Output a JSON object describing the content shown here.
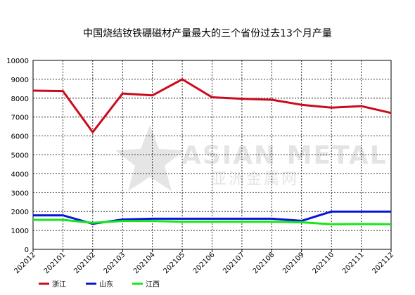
{
  "chart_data": {
    "type": "line",
    "title": "中国烧结钕铁硼磁材产量最大的三个省份过去13个月产量",
    "xlabel": "",
    "ylabel": "",
    "categories": [
      "202012",
      "202101",
      "202102",
      "202103",
      "202104",
      "202105",
      "202106",
      "202107",
      "202108",
      "202109",
      "202110",
      "202111",
      "202112"
    ],
    "ylim": [
      0,
      10000
    ],
    "yticks": [
      0,
      1000,
      2000,
      3000,
      4000,
      5000,
      6000,
      7000,
      8000,
      9000,
      10000
    ],
    "grid": true,
    "legend_position": "bottom-left",
    "series": [
      {
        "name": "浙江",
        "color": "#cc0a1e",
        "values": [
          8400,
          8380,
          6200,
          8250,
          8150,
          9000,
          8050,
          7970,
          7920,
          7650,
          7500,
          7580,
          7220
        ]
      },
      {
        "name": "山东",
        "color": "#0a14d8",
        "values": [
          1800,
          1800,
          1350,
          1580,
          1620,
          1620,
          1620,
          1620,
          1620,
          1510,
          2000,
          2000,
          2000
        ]
      },
      {
        "name": "江西",
        "color": "#16e61a",
        "values": [
          1560,
          1560,
          1400,
          1500,
          1500,
          1460,
          1460,
          1460,
          1460,
          1430,
          1330,
          1340,
          1330
        ]
      }
    ]
  },
  "watermark": {
    "text_en": "ASIAN METAL",
    "text_cn": "亚洲金属网",
    "color": "#c8c8c8"
  }
}
